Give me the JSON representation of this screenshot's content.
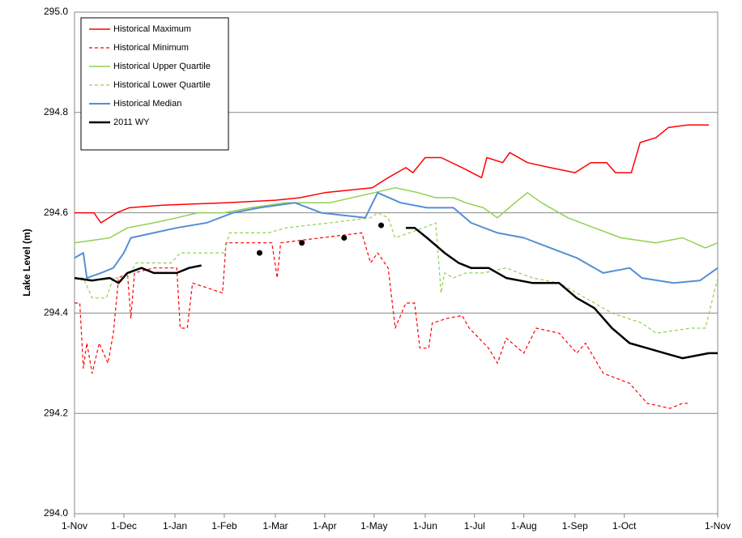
{
  "chart_data": {
    "type": "line",
    "ylabel": "Lake Level (m)",
    "ylim": [
      294.0,
      295.0
    ],
    "yticks": [
      {
        "value": 294.0,
        "label": "294.0"
      },
      {
        "value": 294.2,
        "label": "294.2"
      },
      {
        "value": 294.4,
        "label": "294.4"
      },
      {
        "value": 294.6,
        "label": "294.6"
      },
      {
        "value": 294.8,
        "label": "294.8"
      },
      {
        "value": 295.0,
        "label": "295.0"
      }
    ],
    "xlim": [
      0,
      365
    ],
    "xticks": [
      {
        "value": 0,
        "label": "1-Nov"
      },
      {
        "value": 28,
        "label": "1-Dec"
      },
      {
        "value": 57,
        "label": "1-Jan"
      },
      {
        "value": 85,
        "label": "1-Feb"
      },
      {
        "value": 114,
        "label": "1-Mar"
      },
      {
        "value": 142,
        "label": "1-Apr"
      },
      {
        "value": 170,
        "label": "1-May"
      },
      {
        "value": 199,
        "label": "1-Jun"
      },
      {
        "value": 227,
        "label": "1-Jul"
      },
      {
        "value": 255,
        "label": "1-Aug"
      },
      {
        "value": 284,
        "label": "1-Sep"
      },
      {
        "value": 312,
        "label": "1-Oct"
      },
      {
        "value": 365,
        "label": "1-Nov"
      }
    ],
    "grid": true,
    "legend": "upper left",
    "series": [
      {
        "name": "Historical Maximum",
        "color": "#ff0000",
        "dash": false,
        "width": 1.5,
        "x": [
          0,
          11,
          15,
          24,
          31,
          50,
          86,
          114,
          128,
          142,
          169,
          178,
          188,
          192,
          199,
          208,
          220,
          231,
          234,
          243,
          247,
          257,
          270,
          284,
          293,
          302,
          307,
          316,
          321,
          330,
          337,
          348,
          360
        ],
        "values": [
          294.6,
          294.6,
          294.58,
          294.6,
          294.61,
          294.615,
          294.62,
          294.625,
          294.63,
          294.64,
          294.65,
          294.67,
          294.69,
          294.68,
          294.71,
          294.71,
          294.69,
          294.67,
          294.71,
          294.7,
          294.72,
          294.7,
          294.69,
          294.68,
          294.7,
          294.7,
          294.68,
          294.68,
          294.74,
          294.75,
          294.77,
          294.775,
          294.775
        ]
      },
      {
        "name": "Historical Minimum",
        "color": "#ff0000",
        "dash": true,
        "width": 1.2,
        "x": [
          0,
          3,
          5,
          7,
          10,
          14,
          19,
          22,
          25,
          30,
          32,
          34,
          45,
          58,
          60,
          64,
          67,
          84,
          86,
          112,
          115,
          117,
          140,
          163,
          168,
          172,
          178,
          182,
          188,
          193,
          196,
          201,
          203,
          212,
          220,
          224,
          235,
          240,
          245,
          255,
          262,
          275,
          285,
          290,
          300,
          315,
          325,
          338,
          345,
          348
        ],
        "values": [
          294.42,
          294.42,
          294.29,
          294.34,
          294.28,
          294.34,
          294.3,
          294.36,
          294.47,
          294.48,
          294.39,
          294.48,
          294.49,
          294.49,
          294.37,
          294.37,
          294.46,
          294.44,
          294.54,
          294.54,
          294.47,
          294.54,
          294.55,
          294.56,
          294.5,
          294.52,
          294.49,
          294.37,
          294.42,
          294.42,
          294.33,
          294.33,
          294.38,
          294.39,
          294.395,
          294.37,
          294.33,
          294.3,
          294.35,
          294.32,
          294.37,
          294.36,
          294.32,
          294.34,
          294.28,
          294.26,
          294.22,
          294.21,
          294.22,
          294.22
        ]
      },
      {
        "name": "Historical Upper Quartile",
        "color": "#92d050",
        "dash": false,
        "width": 1.5,
        "x": [
          0,
          10,
          20,
          30,
          45,
          58,
          70,
          85,
          100,
          120,
          145,
          170,
          182,
          195,
          205,
          215,
          222,
          232,
          240,
          250,
          257,
          265,
          280,
          295,
          310,
          330,
          345,
          358,
          365
        ],
        "values": [
          294.54,
          294.545,
          294.55,
          294.57,
          294.58,
          294.59,
          294.6,
          294.6,
          294.61,
          294.62,
          294.62,
          294.64,
          294.65,
          294.64,
          294.63,
          294.63,
          294.62,
          294.61,
          294.59,
          294.62,
          294.64,
          294.62,
          294.59,
          294.57,
          294.55,
          294.54,
          294.55,
          294.53,
          294.54
        ]
      },
      {
        "name": "Historical Lower Quartile",
        "color": "#92d050",
        "dash": true,
        "width": 1.2,
        "x": [
          0,
          5,
          10,
          18,
          22,
          30,
          35,
          55,
          60,
          85,
          88,
          110,
          120,
          145,
          168,
          172,
          178,
          182,
          190,
          198,
          205,
          208,
          210,
          215,
          222,
          232,
          245,
          260,
          275,
          285,
          295,
          305,
          322,
          330,
          350,
          358,
          365
        ],
        "values": [
          294.47,
          294.47,
          294.43,
          294.43,
          294.47,
          294.47,
          294.5,
          294.5,
          294.52,
          294.52,
          294.56,
          294.56,
          294.57,
          294.58,
          294.59,
          294.6,
          294.59,
          294.55,
          294.56,
          294.57,
          294.58,
          294.44,
          294.48,
          294.47,
          294.48,
          294.48,
          294.49,
          294.47,
          294.46,
          294.44,
          294.42,
          294.4,
          294.38,
          294.36,
          294.37,
          294.37,
          294.47
        ]
      },
      {
        "name": "Historical Median",
        "color": "#558ed5",
        "dash": false,
        "width": 2,
        "x": [
          0,
          5,
          7,
          15,
          22,
          28,
          32,
          45,
          58,
          75,
          90,
          105,
          125,
          140,
          165,
          172,
          185,
          200,
          215,
          225,
          240,
          255,
          270,
          285,
          300,
          315,
          322,
          340,
          355,
          365
        ],
        "values": [
          294.51,
          294.52,
          294.47,
          294.48,
          294.49,
          294.52,
          294.55,
          294.56,
          294.57,
          294.58,
          294.6,
          294.61,
          294.62,
          294.6,
          294.59,
          294.64,
          294.62,
          294.61,
          294.61,
          294.58,
          294.56,
          294.55,
          294.53,
          294.51,
          294.48,
          294.49,
          294.47,
          294.46,
          294.465,
          294.49
        ]
      },
      {
        "name": "2011 WY",
        "color": "#000000",
        "dash": false,
        "width": 2.5,
        "x": [
          0,
          10,
          20,
          25,
          30,
          38,
          45,
          58,
          65,
          72,
          90,
          105,
          115,
          129,
          140,
          153,
          165,
          174,
          182,
          188,
          193,
          200,
          210,
          218,
          225,
          235,
          245,
          260,
          275,
          285,
          295,
          305,
          315,
          325,
          335,
          345,
          360,
          365
        ],
        "values": [
          294.47,
          294.465,
          294.47,
          294.46,
          294.48,
          294.49,
          294.48,
          294.48,
          294.49,
          294.495,
          null,
          294.52,
          null,
          294.54,
          null,
          294.55,
          null,
          294.575,
          null,
          294.57,
          294.57,
          294.55,
          294.52,
          294.5,
          294.49,
          294.49,
          294.47,
          294.46,
          294.46,
          294.43,
          294.41,
          294.37,
          294.34,
          294.33,
          294.32,
          294.31,
          294.32,
          294.32
        ]
      }
    ]
  }
}
